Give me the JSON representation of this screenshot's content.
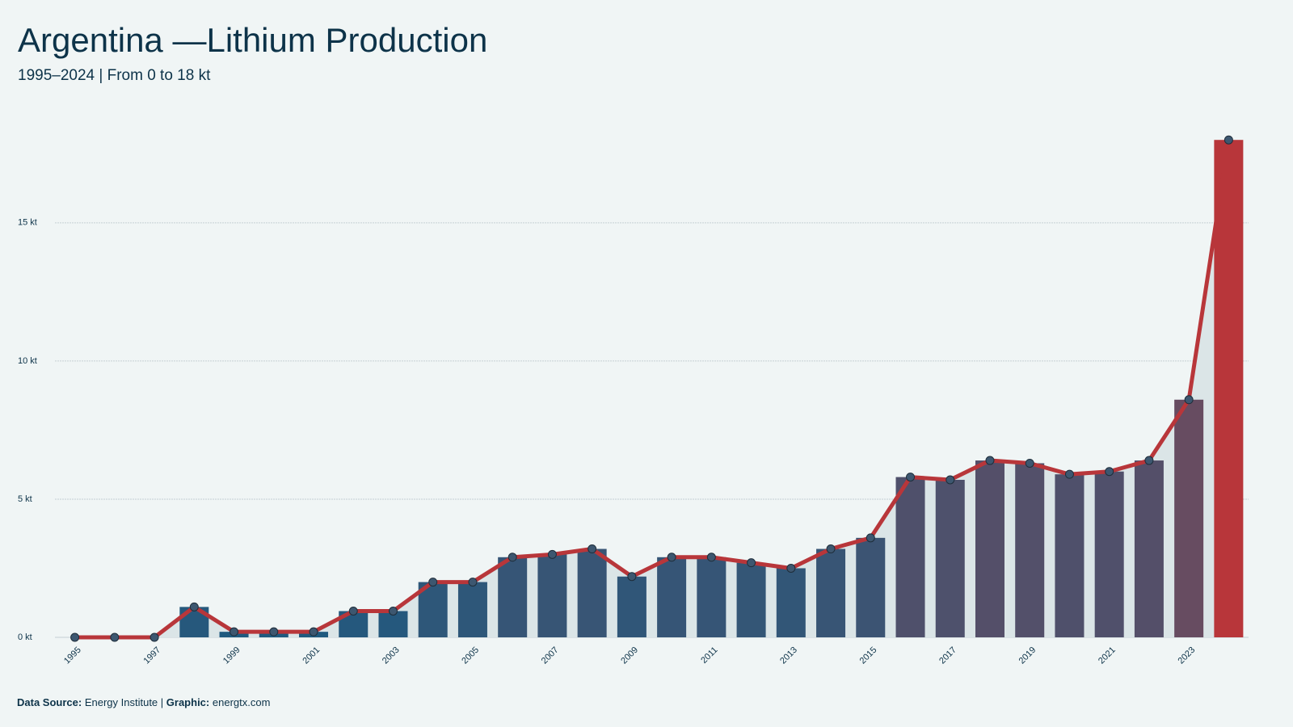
{
  "chart_data": {
    "type": "bar",
    "title": "Argentina —Lithium Production",
    "subtitle": "1995–2024 | From 0 to 18 kt",
    "categories": [
      "1995",
      null,
      "1997",
      null,
      "1999",
      null,
      "2001",
      null,
      "2003",
      null,
      "2005",
      null,
      "2007",
      null,
      "2009",
      null,
      "2011",
      null,
      "2013",
      null,
      "2015",
      null,
      "2017",
      null,
      "2019",
      null,
      "2021",
      null,
      "2023",
      null
    ],
    "values": [
      0,
      0,
      0,
      1.1,
      0.2,
      0.2,
      0.2,
      0.95,
      0.95,
      2.0,
      2.0,
      2.9,
      3.0,
      3.2,
      2.2,
      2.9,
      2.9,
      2.7,
      2.5,
      3.2,
      3.6,
      5.8,
      5.7,
      6.4,
      6.3,
      5.9,
      6.0,
      6.4,
      8.6,
      18.0
    ],
    "colormap": [
      "#1d5a80",
      "#6a4b60",
      "#b8363a"
    ],
    "line_color": "#b8363a",
    "marker_color": "#3d5770",
    "area_color": "#dbe5e7",
    "ylim": [
      0,
      19
    ],
    "yticks": [
      {
        "value": 0,
        "label": "0 kt"
      },
      {
        "value": 5,
        "label": "5 kt"
      },
      {
        "value": 10,
        "label": "10 kt"
      },
      {
        "value": 15,
        "label": "15 kt"
      }
    ],
    "grid": true,
    "footer": {
      "source_label": "Data Source:",
      "source": "Energy Institute |",
      "graphic_label": "Graphic:",
      "graphic": "energtx.com"
    }
  }
}
